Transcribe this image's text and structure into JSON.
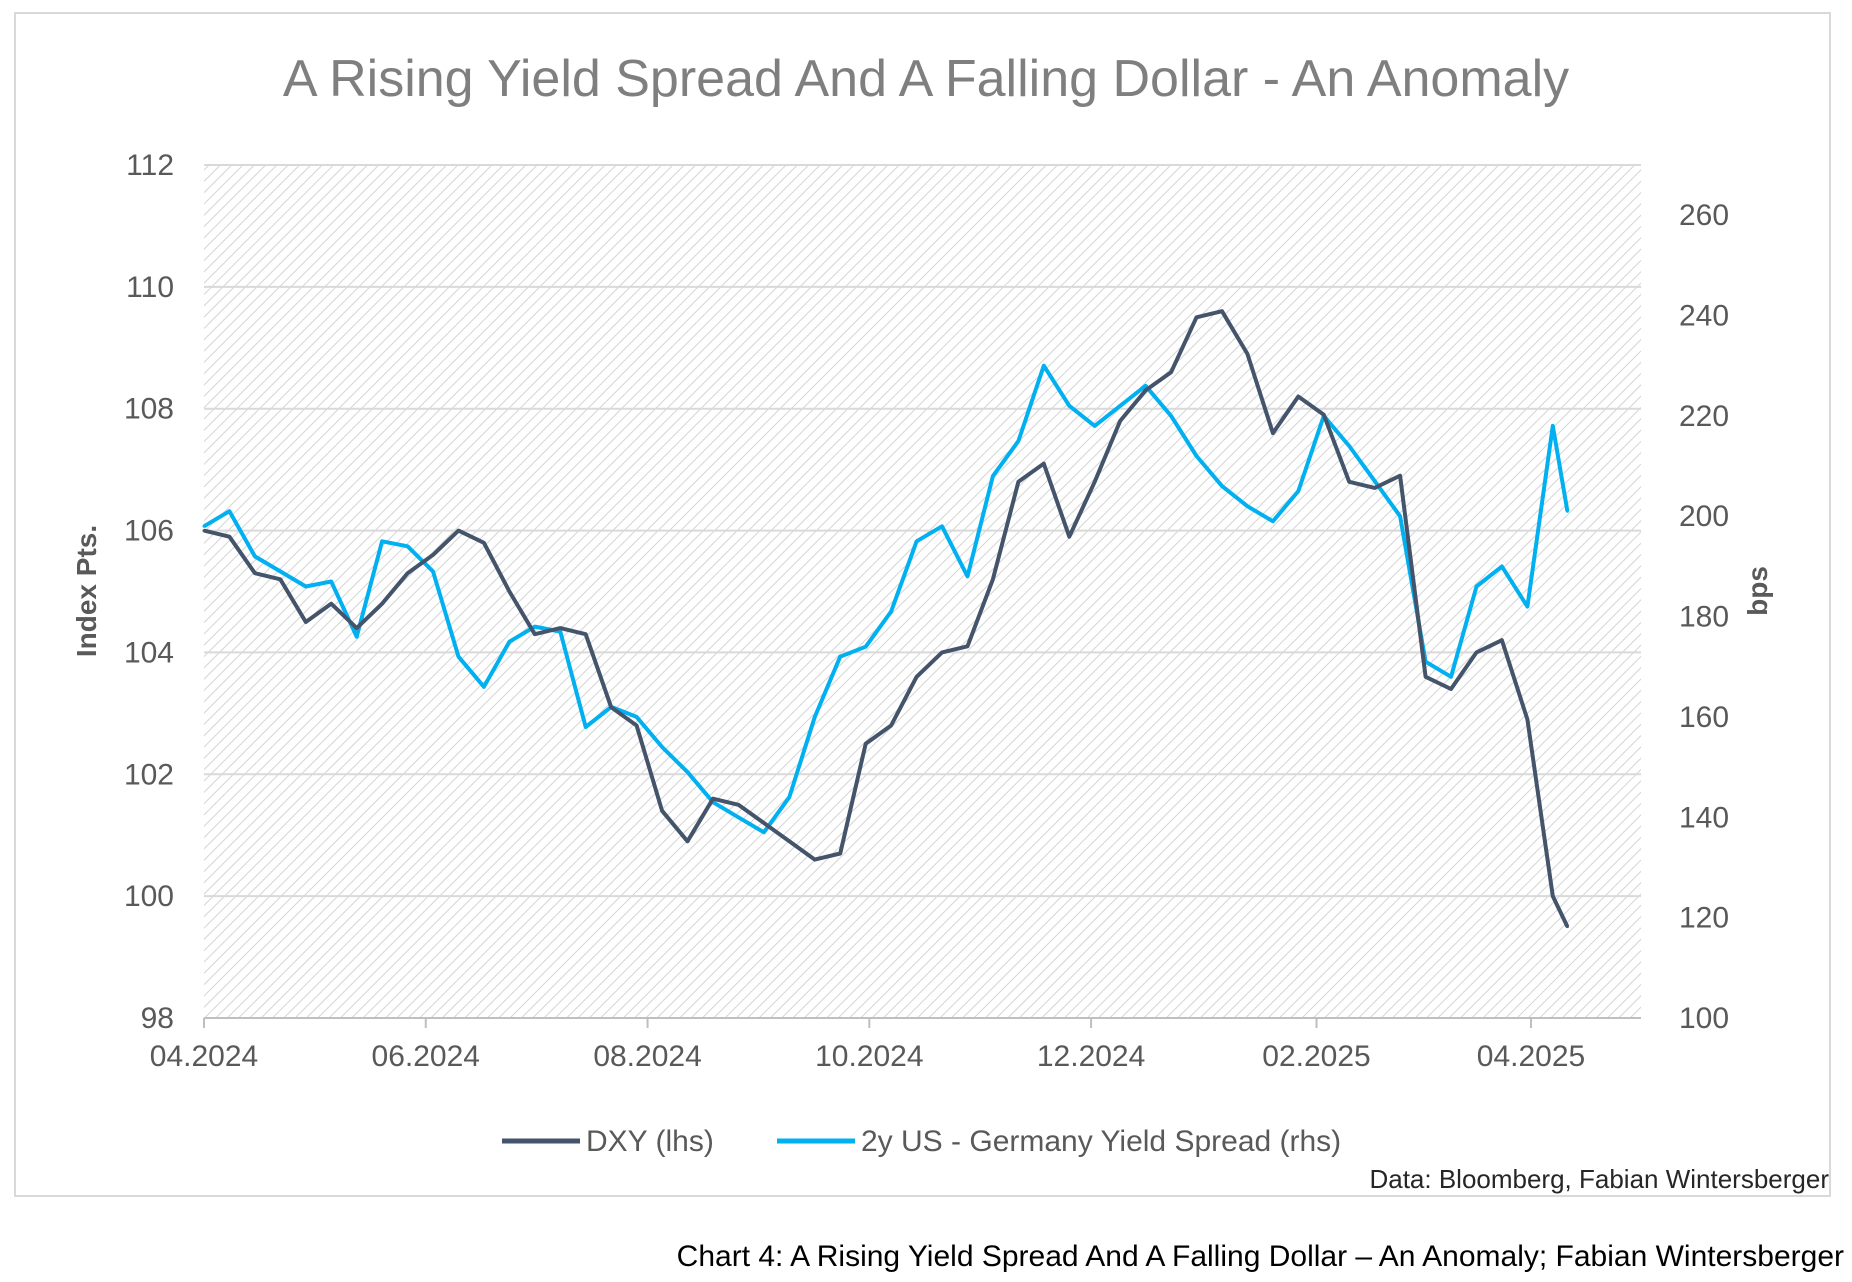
{
  "caption": "Chart 4: A Rising Yield Spread And A Falling Dollar – An Anomaly; Fabian Wintersberger",
  "source": "Data: Bloomberg, Fabian Wintersberger",
  "colors": {
    "dxy": "#44546a",
    "spread": "#00b0f0",
    "grid": "#d9d9d9",
    "hatch": "#cfcfcf",
    "text": "#595959",
    "title": "#7f7f7f"
  },
  "chart_data": {
    "type": "line",
    "title": "A Rising Yield Spread And A Falling Dollar - An Anomaly",
    "ylabel": "Index Pts.",
    "y2label": "bps",
    "ylim": [
      98,
      112
    ],
    "y2lim": [
      100,
      270
    ],
    "xlim": [
      "2024-04",
      "2025-04"
    ],
    "x_ticks": [
      "04.2024",
      "06.2024",
      "08.2024",
      "10.2024",
      "12.2024",
      "02.2025",
      "04.2025"
    ],
    "y_ticks": [
      "98",
      "100",
      "102",
      "104",
      "106",
      "108",
      "110",
      "112"
    ],
    "y2_ticks": [
      "100",
      "120",
      "140",
      "160",
      "180",
      "200",
      "220",
      "240",
      "260"
    ],
    "grid": true,
    "legend": "bottom",
    "series": [
      {
        "name": "DXY (lhs)",
        "axis": "left",
        "x": [
          "2024-04-01",
          "2024-04-08",
          "2024-04-15",
          "2024-04-22",
          "2024-04-29",
          "2024-05-06",
          "2024-05-13",
          "2024-05-20",
          "2024-05-27",
          "2024-06-03",
          "2024-06-10",
          "2024-06-17",
          "2024-06-24",
          "2024-07-01",
          "2024-07-08",
          "2024-07-15",
          "2024-07-22",
          "2024-07-29",
          "2024-08-05",
          "2024-08-12",
          "2024-08-19",
          "2024-08-26",
          "2024-09-02",
          "2024-09-09",
          "2024-09-16",
          "2024-09-23",
          "2024-09-30",
          "2024-10-07",
          "2024-10-14",
          "2024-10-21",
          "2024-10-28",
          "2024-11-04",
          "2024-11-11",
          "2024-11-18",
          "2024-11-25",
          "2024-12-02",
          "2024-12-09",
          "2024-12-16",
          "2024-12-23",
          "2024-12-30",
          "2025-01-06",
          "2025-01-13",
          "2025-01-20",
          "2025-01-27",
          "2025-02-03",
          "2025-02-10",
          "2025-02-17",
          "2025-02-24",
          "2025-03-03",
          "2025-03-10",
          "2025-03-17",
          "2025-03-24",
          "2025-03-31",
          "2025-04-07",
          "2025-04-11"
        ],
        "values": [
          106.0,
          105.9,
          105.3,
          105.2,
          104.5,
          104.8,
          104.4,
          104.8,
          105.3,
          105.6,
          106.0,
          105.8,
          105.0,
          104.3,
          104.4,
          104.3,
          103.1,
          102.8,
          101.4,
          100.9,
          101.6,
          101.5,
          101.2,
          100.9,
          100.6,
          100.7,
          102.5,
          102.8,
          103.6,
          104.0,
          104.1,
          105.2,
          106.8,
          107.1,
          105.9,
          106.8,
          107.8,
          108.3,
          108.6,
          109.5,
          109.6,
          108.9,
          107.6,
          108.2,
          107.9,
          106.8,
          106.7,
          106.9,
          103.6,
          103.4,
          104.0,
          104.2,
          102.9,
          100.0,
          99.5
        ]
      },
      {
        "name": "2y US - Germany Yield Spread (rhs)",
        "axis": "right",
        "x": [
          "2024-04-01",
          "2024-04-08",
          "2024-04-15",
          "2024-04-22",
          "2024-04-29",
          "2024-05-06",
          "2024-05-13",
          "2024-05-20",
          "2024-05-27",
          "2024-06-03",
          "2024-06-10",
          "2024-06-17",
          "2024-06-24",
          "2024-07-01",
          "2024-07-08",
          "2024-07-15",
          "2024-07-22",
          "2024-07-29",
          "2024-08-05",
          "2024-08-12",
          "2024-08-19",
          "2024-08-26",
          "2024-09-02",
          "2024-09-09",
          "2024-09-16",
          "2024-09-23",
          "2024-09-30",
          "2024-10-07",
          "2024-10-14",
          "2024-10-21",
          "2024-10-28",
          "2024-11-04",
          "2024-11-11",
          "2024-11-18",
          "2024-11-25",
          "2024-12-02",
          "2024-12-09",
          "2024-12-16",
          "2024-12-23",
          "2024-12-30",
          "2025-01-06",
          "2025-01-13",
          "2025-01-20",
          "2025-01-27",
          "2025-02-03",
          "2025-02-10",
          "2025-02-17",
          "2025-02-24",
          "2025-03-03",
          "2025-03-10",
          "2025-03-17",
          "2025-03-24",
          "2025-03-31",
          "2025-04-07",
          "2025-04-11"
        ],
        "values": [
          198,
          201,
          192,
          189,
          186,
          187,
          176,
          195,
          194,
          189,
          172,
          166,
          175,
          178,
          177,
          158,
          162,
          160,
          154,
          149,
          143,
          140,
          137,
          144,
          160,
          172,
          174,
          181,
          195,
          198,
          188,
          208,
          215,
          230,
          222,
          218,
          222,
          226,
          220,
          212,
          206,
          202,
          199,
          205,
          220,
          214,
          207,
          200,
          171,
          168,
          186,
          190,
          182,
          218,
          201
        ]
      }
    ]
  },
  "legend": [
    {
      "label": "DXY (lhs)",
      "color": "#44546a"
    },
    {
      "label": "2y US - Germany Yield Spread (rhs)",
      "color": "#00b0f0"
    }
  ]
}
